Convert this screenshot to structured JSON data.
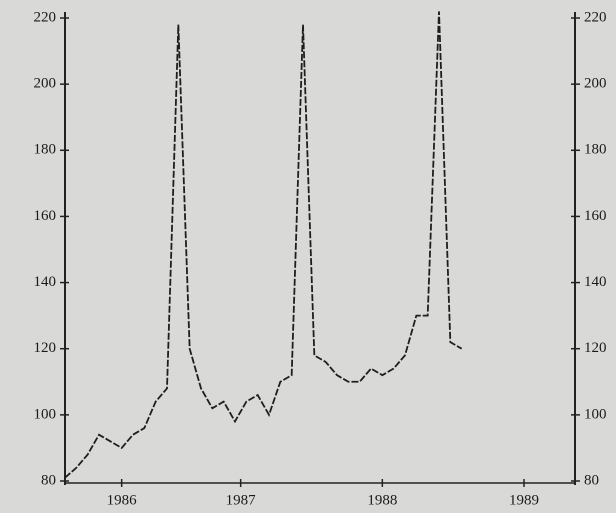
{
  "chart_data": {
    "type": "line",
    "x": [
      0,
      1,
      2,
      3,
      4,
      5,
      6,
      7,
      8,
      9,
      10,
      11,
      12,
      13,
      14,
      15,
      16,
      17,
      18,
      19,
      20,
      21,
      22,
      23,
      24,
      25,
      26,
      27,
      28,
      29,
      30,
      31,
      32,
      33,
      34,
      35
    ],
    "series": [
      {
        "color": "#1e1e1e",
        "values": [
          81,
          84,
          88,
          94,
          92,
          90,
          94,
          96,
          104,
          108,
          218,
          120,
          108,
          102,
          104,
          98,
          104,
          106,
          100,
          110,
          112,
          218,
          118,
          116,
          112,
          110,
          110,
          114,
          112,
          114,
          118,
          130,
          130,
          222,
          122,
          120
        ]
      }
    ],
    "xlim": [
      0,
      45
    ],
    "xticks": [
      {
        "value": 5,
        "label": "1986"
      },
      {
        "value": 15.5,
        "label": "1987"
      },
      {
        "value": 28,
        "label": "1988"
      },
      {
        "value": 40.5,
        "label": "1989"
      }
    ],
    "ylim": [
      80,
      220
    ],
    "yticks": [
      80,
      100,
      120,
      140,
      160,
      180,
      200,
      220
    ]
  }
}
